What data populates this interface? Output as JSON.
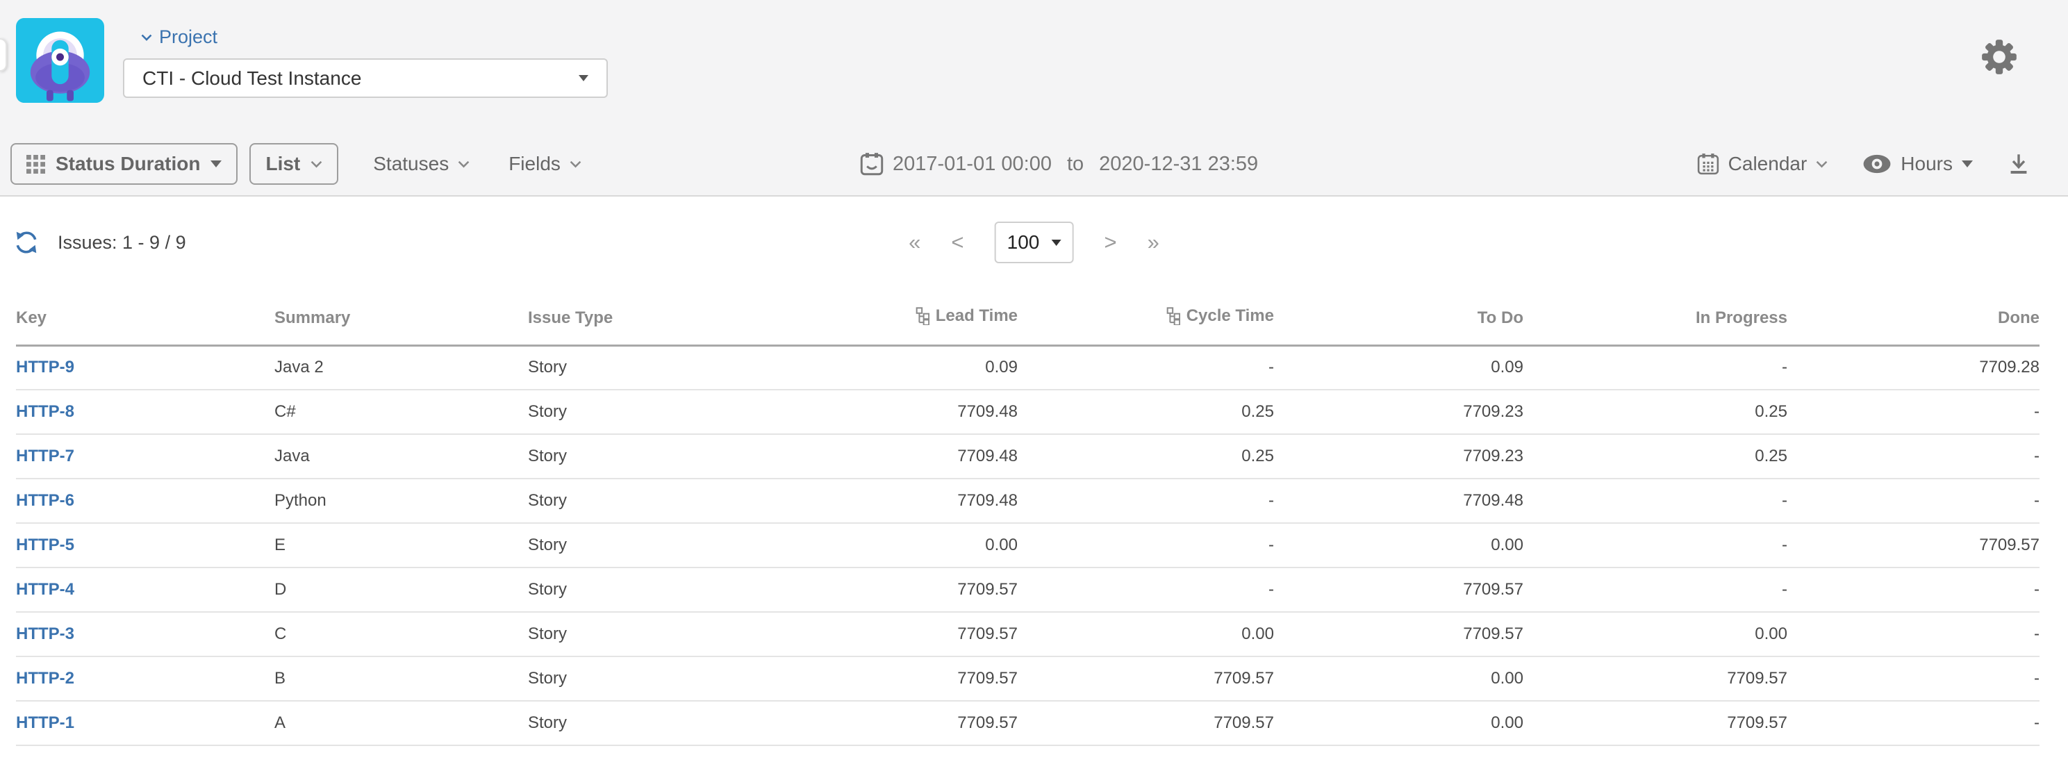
{
  "header": {
    "project_label": "Project",
    "project_value": "CTI - Cloud Test Instance"
  },
  "toolbar": {
    "report_label": "Status Duration",
    "view_label": "List",
    "statuses_label": "Statuses",
    "fields_label": "Fields",
    "date_from": "2017-01-01 00:00",
    "date_separator": "to",
    "date_to": "2020-12-31 23:59",
    "calendar_label": "Calendar",
    "hours_label": "Hours"
  },
  "content": {
    "issues_summary": "Issues: 1 - 9 / 9",
    "pagination": {
      "first": "«",
      "prev": "<",
      "page_size": "100",
      "next": ">",
      "last": "»"
    }
  },
  "table": {
    "columns": [
      "Key",
      "Summary",
      "Issue Type",
      "Lead Time",
      "Cycle Time",
      "To Do",
      "In Progress",
      "Done"
    ],
    "rows": [
      {
        "key": "HTTP-9",
        "summary": "Java 2",
        "issue_type": "Story",
        "lead_time": "0.09",
        "cycle_time": "-",
        "to_do": "0.09",
        "in_progress": "-",
        "done": "7709.28"
      },
      {
        "key": "HTTP-8",
        "summary": "C#",
        "issue_type": "Story",
        "lead_time": "7709.48",
        "cycle_time": "0.25",
        "to_do": "7709.23",
        "in_progress": "0.25",
        "done": "-"
      },
      {
        "key": "HTTP-7",
        "summary": "Java",
        "issue_type": "Story",
        "lead_time": "7709.48",
        "cycle_time": "0.25",
        "to_do": "7709.23",
        "in_progress": "0.25",
        "done": "-"
      },
      {
        "key": "HTTP-6",
        "summary": "Python",
        "issue_type": "Story",
        "lead_time": "7709.48",
        "cycle_time": "-",
        "to_do": "7709.48",
        "in_progress": "-",
        "done": "-"
      },
      {
        "key": "HTTP-5",
        "summary": "E",
        "issue_type": "Story",
        "lead_time": "0.00",
        "cycle_time": "-",
        "to_do": "0.00",
        "in_progress": "-",
        "done": "7709.57"
      },
      {
        "key": "HTTP-4",
        "summary": "D",
        "issue_type": "Story",
        "lead_time": "7709.57",
        "cycle_time": "-",
        "to_do": "7709.57",
        "in_progress": "-",
        "done": "-"
      },
      {
        "key": "HTTP-3",
        "summary": "C",
        "issue_type": "Story",
        "lead_time": "7709.57",
        "cycle_time": "0.00",
        "to_do": "7709.57",
        "in_progress": "0.00",
        "done": "-"
      },
      {
        "key": "HTTP-2",
        "summary": "B",
        "issue_type": "Story",
        "lead_time": "7709.57",
        "cycle_time": "7709.57",
        "to_do": "0.00",
        "in_progress": "7709.57",
        "done": "-"
      },
      {
        "key": "HTTP-1",
        "summary": "A",
        "issue_type": "Story",
        "lead_time": "7709.57",
        "cycle_time": "7709.57",
        "to_do": "0.00",
        "in_progress": "7709.57",
        "done": "-"
      }
    ]
  },
  "colors": {
    "accent_blue": "#3b73af",
    "logo_cyan": "#1fc0e7",
    "logo_purple": "#7463cf",
    "header_bg": "#f4f4f5",
    "toolbar_text": "#666666",
    "table_header_text": "#8a8a8a"
  }
}
